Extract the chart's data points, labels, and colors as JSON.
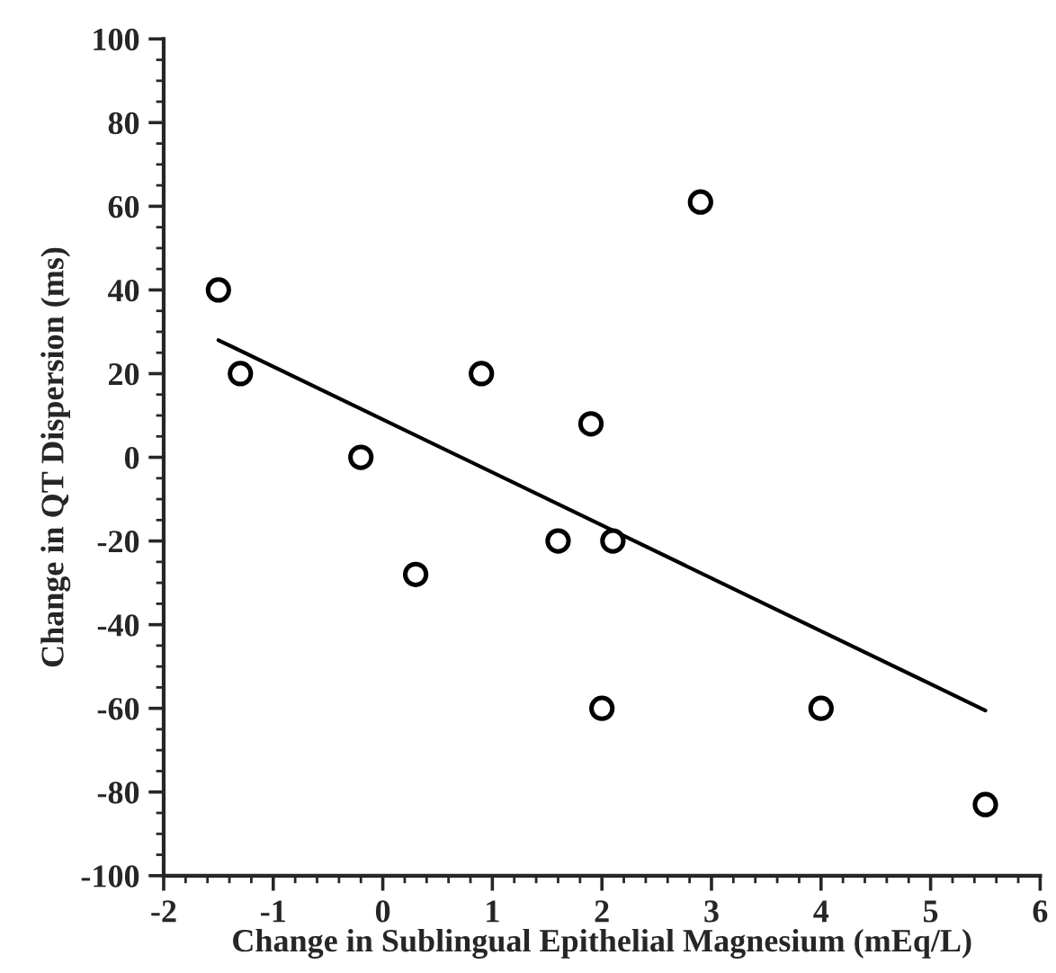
{
  "chart_data": {
    "type": "scatter",
    "xlabel": "Change in Sublingual Epithelial Magnesium (mEq/L)",
    "ylabel": "Change in QT Dispersion (ms)",
    "xlim": [
      -2,
      6
    ],
    "xticks": [
      -2,
      -1,
      0,
      1,
      2,
      3,
      4,
      5,
      6
    ],
    "ylim": [
      -100,
      100
    ],
    "yticks": [
      -100,
      -80,
      -60,
      -40,
      -20,
      0,
      20,
      40,
      60,
      80,
      100
    ],
    "grid": false,
    "series": [
      {
        "marker": "circle",
        "color": "#000000",
        "x": [
          -1.5,
          -1.3,
          -0.2,
          0.3,
          0.9,
          1.6,
          1.9,
          2.1,
          2.0,
          2.9,
          4.0,
          5.5
        ],
        "values": [
          40,
          20,
          0,
          -28,
          20,
          -20,
          8,
          -20,
          -60,
          61,
          -60,
          -83
        ]
      },
      {
        "type": "line",
        "marker": "none",
        "color": "#000000",
        "x": [
          -1.5,
          5.5
        ],
        "values": [
          28,
          -60.5
        ]
      }
    ]
  }
}
